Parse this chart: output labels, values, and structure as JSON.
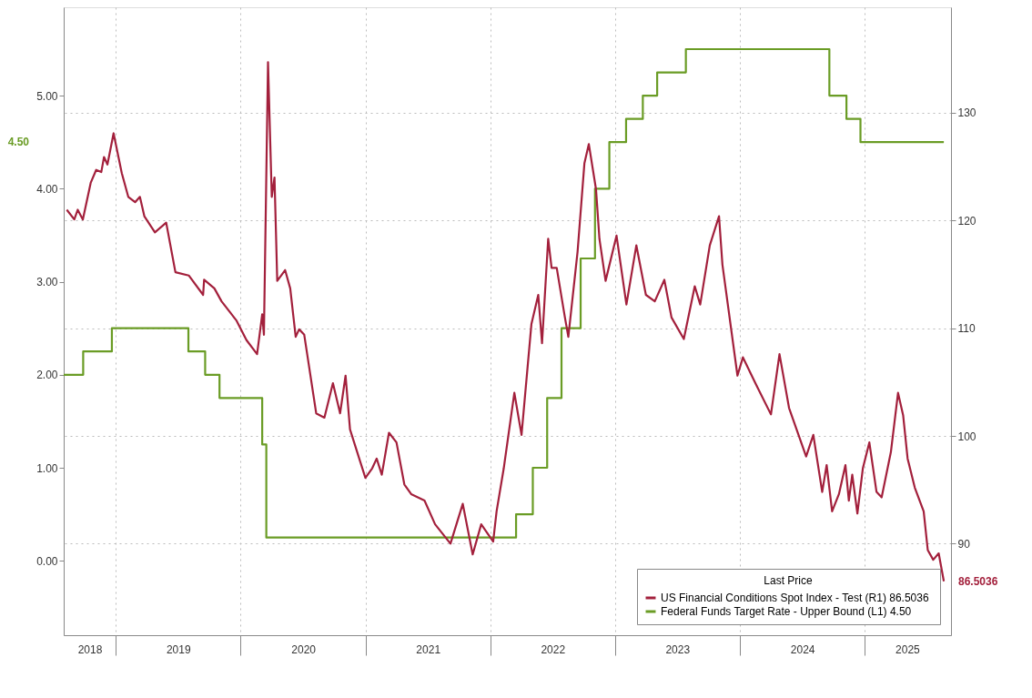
{
  "chart_data": {
    "type": "line",
    "legend_title": "Last Price",
    "legend": "bottom right",
    "grid": true,
    "xlim": [
      "2018-08-01",
      "2025-09-10"
    ],
    "xticks": [
      {
        "value": "2018-10-16",
        "label": "2018"
      },
      {
        "value": "2019-01-01",
        "label": null
      },
      {
        "value": "2019-07-02",
        "label": "2019"
      },
      {
        "value": "2020-01-01",
        "label": null
      },
      {
        "value": "2020-07-02",
        "label": "2020"
      },
      {
        "value": "2021-01-01",
        "label": null
      },
      {
        "value": "2021-07-02",
        "label": "2021"
      },
      {
        "value": "2022-01-01",
        "label": null
      },
      {
        "value": "2022-07-02",
        "label": "2022"
      },
      {
        "value": "2023-01-01",
        "label": null
      },
      {
        "value": "2023-07-02",
        "label": "2023"
      },
      {
        "value": "2024-01-01",
        "label": null
      },
      {
        "value": "2024-07-02",
        "label": "2024"
      },
      {
        "value": "2025-01-01",
        "label": null
      },
      {
        "value": "2025-05-05",
        "label": "2025"
      }
    ],
    "ylim": [
      -0.8,
      5.95
    ],
    "yticks": [
      {
        "value": 0,
        "label": "0.00"
      },
      {
        "value": 1,
        "label": "1.00"
      },
      {
        "value": 2,
        "label": "2.00"
      },
      {
        "value": 3,
        "label": "3.00"
      },
      {
        "value": 4,
        "label": "4.00"
      },
      {
        "value": 5,
        "label": "5.00"
      }
    ],
    "y2lim": [
      81.5,
      139.8
    ],
    "y2ticks": [
      90,
      100,
      110,
      120,
      130
    ],
    "annotations": [
      "86.5036",
      "4.50"
    ],
    "series": [
      {
        "name": "US Financial Conditions Spot Index - Test  (R1) 86.5036",
        "color": "#a3203c",
        "axis": "y2",
        "x": [
          "2018-08-10",
          "2018-09-01",
          "2018-09-11",
          "2018-09-26",
          "2018-10-19",
          "2018-11-04",
          "2018-11-19",
          "2018-11-27",
          "2018-12-07",
          "2018-12-25",
          "2019-01-18",
          "2019-02-06",
          "2019-02-26",
          "2019-03-12",
          "2019-03-25",
          "2019-04-25",
          "2019-05-28",
          "2019-06-24",
          "2019-08-02",
          "2019-09-13",
          "2019-09-16",
          "2019-10-16",
          "2019-11-06",
          "2019-12-20",
          "2020-01-18",
          "2020-02-18",
          "2020-03-04",
          "2020-03-09",
          "2020-03-21",
          "2020-04-01",
          "2020-04-09",
          "2020-04-17",
          "2020-05-10",
          "2020-05-25",
          "2020-06-10",
          "2020-06-20",
          "2020-07-05",
          "2020-08-09",
          "2020-09-02",
          "2020-09-27",
          "2020-10-18",
          "2020-11-03",
          "2020-11-16",
          "2020-12-31",
          "2021-01-20",
          "2021-02-02",
          "2021-02-17",
          "2021-03-10",
          "2021-04-01",
          "2021-04-24",
          "2021-05-14",
          "2021-06-22",
          "2021-07-23",
          "2021-09-06",
          "2021-10-12",
          "2021-11-10",
          "2021-12-05",
          "2022-01-09",
          "2022-01-19",
          "2022-02-09",
          "2022-03-12",
          "2022-04-02",
          "2022-05-01",
          "2022-05-21",
          "2022-06-01",
          "2022-06-19",
          "2022-06-29",
          "2022-07-14",
          "2022-08-07",
          "2022-08-17",
          "2022-09-13",
          "2022-10-03",
          "2022-10-16",
          "2022-11-06",
          "2022-11-16",
          "2022-12-04",
          "2023-01-05",
          "2023-02-03",
          "2023-03-04",
          "2023-04-01",
          "2023-04-27",
          "2023-05-25",
          "2023-06-15",
          "2023-07-21",
          "2023-08-22",
          "2023-09-07",
          "2023-10-05",
          "2023-11-01",
          "2023-11-11",
          "2023-12-25",
          "2024-01-10",
          "2024-02-17",
          "2024-04-01",
          "2024-04-26",
          "2024-05-24",
          "2024-07-13",
          "2024-08-03",
          "2024-08-29",
          "2024-09-11",
          "2024-09-27",
          "2024-10-17",
          "2024-11-05",
          "2024-11-15",
          "2024-11-25",
          "2024-12-10",
          "2024-12-26",
          "2025-01-14",
          "2025-02-04",
          "2025-02-19",
          "2025-03-18",
          "2025-04-08",
          "2025-04-23",
          "2025-05-06",
          "2025-05-27",
          "2025-06-22",
          "2025-07-04",
          "2025-07-20",
          "2025-08-05",
          "2025-08-20"
        ],
        "values": [
          121.0,
          120.1,
          121.0,
          120.1,
          123.5,
          124.7,
          124.5,
          125.9,
          125.2,
          128.1,
          124.4,
          122.2,
          121.7,
          122.2,
          120.4,
          118.9,
          119.8,
          115.2,
          114.9,
          113.1,
          114.5,
          113.7,
          112.5,
          110.7,
          108.9,
          107.6,
          111.3,
          109.4,
          134.7,
          122.2,
          124.0,
          114.4,
          115.4,
          113.7,
          109.2,
          109.9,
          109.4,
          102.1,
          101.7,
          104.9,
          102.1,
          105.6,
          100.6,
          96.1,
          97.0,
          97.9,
          96.4,
          100.3,
          99.4,
          95.5,
          94.6,
          94.0,
          91.8,
          90.0,
          93.7,
          89.0,
          91.8,
          90.2,
          93.0,
          97.0,
          104.0,
          100.1,
          110.4,
          113.1,
          108.6,
          118.3,
          115.6,
          115.6,
          111.0,
          109.2,
          117.1,
          125.3,
          127.1,
          122.9,
          118.3,
          114.4,
          118.6,
          112.2,
          117.7,
          113.1,
          112.5,
          114.5,
          111.0,
          109.0,
          113.9,
          112.2,
          117.7,
          120.4,
          115.9,
          105.6,
          107.3,
          104.8,
          102.0,
          107.6,
          102.6,
          98.1,
          100.1,
          94.8,
          97.3,
          93.0,
          94.6,
          97.3,
          94.0,
          96.4,
          92.8,
          97.0,
          99.4,
          94.8,
          94.3,
          98.5,
          104.0,
          101.9,
          97.9,
          95.2,
          93.0,
          89.4,
          88.5,
          89.1,
          86.5036
        ]
      },
      {
        "name": "Federal Funds Target Rate - Upper Bound  (L1)  4.50",
        "color": "#6a9c25",
        "axis": "y",
        "type": "step",
        "x": [
          "2018-08-01",
          "2018-09-27",
          "2018-12-20",
          "2019-08-01",
          "2019-09-19",
          "2019-10-31",
          "2020-03-04",
          "2020-03-16",
          "2022-03-17",
          "2022-05-05",
          "2022-06-16",
          "2022-07-28",
          "2022-09-22",
          "2022-11-03",
          "2022-12-15",
          "2023-02-02",
          "2023-03-23",
          "2023-05-04",
          "2023-07-27",
          "2024-09-19",
          "2024-11-08",
          "2024-12-19",
          "2025-08-20"
        ],
        "values": [
          2.0,
          2.25,
          2.5,
          2.25,
          2.0,
          1.75,
          1.25,
          0.25,
          0.5,
          1.0,
          1.75,
          2.5,
          3.25,
          4.0,
          4.5,
          4.75,
          5.0,
          5.25,
          5.5,
          5.0,
          4.75,
          4.5,
          4.5
        ]
      }
    ]
  }
}
